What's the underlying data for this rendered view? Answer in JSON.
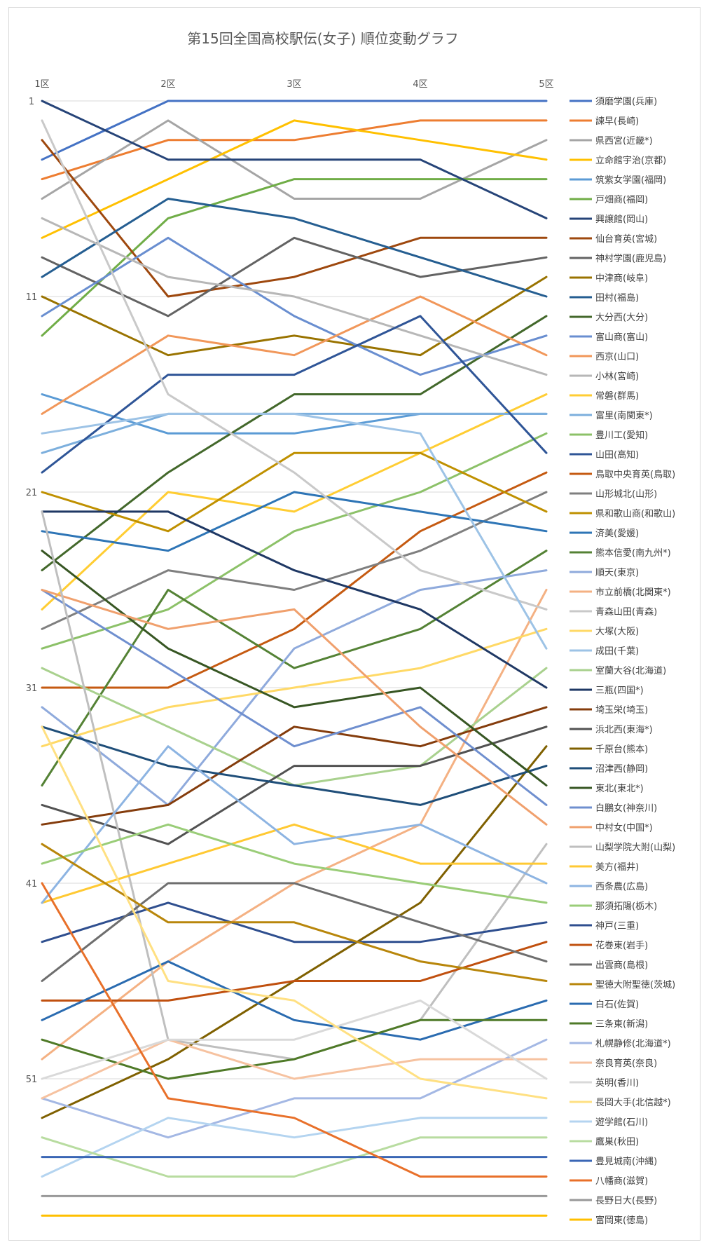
{
  "chart_data": {
    "type": "line",
    "title": "第15回全国高校駅伝(女子) 順位変動グラフ",
    "categories": [
      "1区",
      "2区",
      "3区",
      "4区",
      "5区"
    ],
    "y_ticks": [
      1,
      11,
      21,
      31,
      41,
      51
    ],
    "ylim": [
      1,
      58
    ],
    "y_reversed": true,
    "grid": true,
    "legend_position": "right",
    "series": [
      {
        "name": "須磨学園(兵庫)",
        "color": "#4472c4",
        "values": [
          4,
          1,
          1,
          1,
          1
        ]
      },
      {
        "name": "諫早(長崎)",
        "color": "#ed7d31",
        "values": [
          5,
          3,
          3,
          2,
          2
        ]
      },
      {
        "name": "県西宮(近畿*)",
        "color": "#a5a5a5",
        "values": [
          6,
          2,
          6,
          6,
          3
        ]
      },
      {
        "name": "立命館宇治(京都)",
        "color": "#ffc000",
        "values": [
          8,
          5,
          2,
          3,
          4
        ]
      },
      {
        "name": "筑紫女学園(福岡)",
        "color": "#5b9bd5",
        "values": [
          16,
          18,
          18,
          17,
          17
        ]
      },
      {
        "name": "戸畑商(福岡)",
        "color": "#70ad47",
        "values": [
          13,
          7,
          5,
          5,
          5
        ]
      },
      {
        "name": "興譲館(岡山)",
        "color": "#264478",
        "values": [
          1,
          4,
          4,
          4,
          7
        ]
      },
      {
        "name": "仙台育英(宮城)",
        "color": "#9e480e",
        "values": [
          3,
          11,
          10,
          8,
          8
        ]
      },
      {
        "name": "神村学園(鹿児島)",
        "color": "#636363",
        "values": [
          9,
          12,
          8,
          10,
          9
        ]
      },
      {
        "name": "中津商(岐阜)",
        "color": "#997300",
        "values": [
          11,
          14,
          13,
          14,
          10
        ]
      },
      {
        "name": "田村(福島)",
        "color": "#255e91",
        "values": [
          10,
          6,
          7,
          9,
          11
        ]
      },
      {
        "name": "大分西(大分)",
        "color": "#43682b",
        "values": [
          25,
          20,
          16,
          16,
          12
        ]
      },
      {
        "name": "富山商(富山)",
        "color": "#698ed0",
        "values": [
          12,
          8,
          12,
          15,
          13
        ]
      },
      {
        "name": "西京(山口)",
        "color": "#f1975a",
        "values": [
          17,
          13,
          14,
          11,
          14
        ]
      },
      {
        "name": "小林(宮崎)",
        "color": "#b7b7b7",
        "values": [
          7,
          10,
          11,
          13,
          15
        ]
      },
      {
        "name": "常磐(群馬)",
        "color": "#ffcd33",
        "values": [
          27,
          21,
          22,
          19,
          16
        ]
      },
      {
        "name": "富里(南関東*)",
        "color": "#7cafdd",
        "values": [
          19,
          17,
          17,
          17,
          17
        ]
      },
      {
        "name": "豊川工(愛知)",
        "color": "#8cc168",
        "values": [
          29,
          27,
          23,
          21,
          18
        ]
      },
      {
        "name": "山田(高知)",
        "color": "#2f5597",
        "values": [
          20,
          15,
          15,
          12,
          19
        ]
      },
      {
        "name": "鳥取中央育英(鳥取)",
        "color": "#c55a11",
        "values": [
          31,
          31,
          28,
          23,
          20
        ]
      },
      {
        "name": "山形城北(山形)",
        "color": "#7f7f7f",
        "values": [
          28,
          25,
          26,
          24,
          21
        ]
      },
      {
        "name": "県和歌山商(和歌山)",
        "color": "#bf9000",
        "values": [
          21,
          23,
          19,
          19,
          22
        ]
      },
      {
        "name": "済美(愛媛)",
        "color": "#2e75b6",
        "values": [
          23,
          24,
          21,
          22,
          23
        ]
      },
      {
        "name": "熊本信愛(南九州*)",
        "color": "#548235",
        "values": [
          36,
          26,
          30,
          28,
          24
        ]
      },
      {
        "name": "順天(東京)",
        "color": "#8faadc",
        "values": [
          32,
          37,
          29,
          26,
          25
        ]
      },
      {
        "name": "市立前橋(北関東*)",
        "color": "#f4b183",
        "values": [
          50,
          45,
          41,
          38,
          26
        ]
      },
      {
        "name": "青森山田(青森)",
        "color": "#c9c9c9",
        "values": [
          2,
          16,
          20,
          25,
          27
        ]
      },
      {
        "name": "大塚(大阪)",
        "color": "#ffd966",
        "values": [
          34,
          32,
          31,
          30,
          28
        ]
      },
      {
        "name": "成田(千葉)",
        "color": "#9dc3e6",
        "values": [
          18,
          17,
          17,
          18,
          29
        ]
      },
      {
        "name": "室蘭大谷(北海道)",
        "color": "#a9d18e",
        "values": [
          30,
          33,
          36,
          35,
          30
        ]
      },
      {
        "name": "三瓶(四国*)",
        "color": "#1f3864",
        "values": [
          22,
          22,
          25,
          27,
          31
        ]
      },
      {
        "name": "埼玉栄(埼玉)",
        "color": "#843c0c",
        "values": [
          38,
          37,
          33,
          34,
          32
        ]
      },
      {
        "name": "浜北西(東海*)",
        "color": "#525252",
        "values": [
          37,
          39,
          35,
          35,
          33
        ]
      },
      {
        "name": "千原台(熊本)",
        "color": "#7f6000",
        "values": [
          53,
          50,
          46,
          42,
          34
        ]
      },
      {
        "name": "沼津西(静岡)",
        "color": "#1f4e79",
        "values": [
          33,
          35,
          36,
          37,
          35
        ]
      },
      {
        "name": "東北(東北*)",
        "color": "#375623",
        "values": [
          24,
          29,
          32,
          31,
          36
        ]
      },
      {
        "name": "白鵬女(神奈川)",
        "color": "#6f8fcf",
        "values": [
          26,
          30,
          34,
          32,
          37
        ]
      },
      {
        "name": "中村女(中国*)",
        "color": "#f0a06d",
        "values": [
          26,
          28,
          27,
          33,
          38
        ]
      },
      {
        "name": "山梨学院大附(山梨)",
        "color": "#bfbfbf",
        "values": [
          22,
          49,
          50,
          48,
          39
        ]
      },
      {
        "name": "美方(福井)",
        "color": "#ffc933",
        "values": [
          42,
          40,
          38,
          40,
          40
        ]
      },
      {
        "name": "西条農(広島)",
        "color": "#8db4e2",
        "values": [
          42,
          34,
          39,
          38,
          41
        ]
      },
      {
        "name": "那須拓陽(栃木)",
        "color": "#9acd78",
        "values": [
          40,
          38,
          40,
          41,
          42
        ]
      },
      {
        "name": "神戸(三重)",
        "color": "#2f4f8f",
        "values": [
          44,
          42,
          44,
          44,
          43
        ]
      },
      {
        "name": "花巻東(岩手)",
        "color": "#c0500f",
        "values": [
          47,
          47,
          46,
          46,
          44
        ]
      },
      {
        "name": "出雲商(島根)",
        "color": "#6e6e6e",
        "values": [
          46,
          41,
          41,
          43,
          45
        ]
      },
      {
        "name": "聖徳大附聖徳(茨城)",
        "color": "#b8860b",
        "values": [
          39,
          43,
          43,
          45,
          46
        ]
      },
      {
        "name": "白石(佐賀)",
        "color": "#2a6bb0",
        "values": [
          48,
          45,
          48,
          49,
          47
        ]
      },
      {
        "name": "三条東(新潟)",
        "color": "#4f7a28",
        "values": [
          49,
          51,
          50,
          48,
          48
        ]
      },
      {
        "name": "札幌静修(北海道*)",
        "color": "#a4b8e4",
        "values": [
          52,
          54,
          52,
          52,
          49
        ]
      },
      {
        "name": "奈良育英(奈良)",
        "color": "#f6c2a0",
        "values": [
          52,
          49,
          51,
          50,
          50
        ]
      },
      {
        "name": "英明(香川)",
        "color": "#d9d9d9",
        "values": [
          51,
          49,
          49,
          47,
          51
        ]
      },
      {
        "name": "長岡大手(北信越*)",
        "color": "#ffe082",
        "values": [
          33,
          46,
          47,
          51,
          52
        ]
      },
      {
        "name": "遊学館(石川)",
        "color": "#b4d4f0",
        "values": [
          56,
          53,
          54,
          53,
          53
        ]
      },
      {
        "name": "鷹巣(秋田)",
        "color": "#b8dca0",
        "values": [
          54,
          56,
          56,
          54,
          54
        ]
      },
      {
        "name": "豊見城南(沖縄)",
        "color": "#3a66b5",
        "values": [
          55,
          55,
          55,
          55,
          55
        ]
      },
      {
        "name": "八幡商(滋賀)",
        "color": "#e8702a",
        "values": [
          41,
          52,
          53,
          56,
          56
        ]
      },
      {
        "name": "長野日大(長野)",
        "color": "#999999",
        "values": [
          57,
          57,
          57,
          57,
          57
        ]
      },
      {
        "name": "富岡東(徳島)",
        "color": "#ffbf00",
        "values": [
          58,
          58,
          58,
          58,
          58
        ]
      }
    ]
  }
}
